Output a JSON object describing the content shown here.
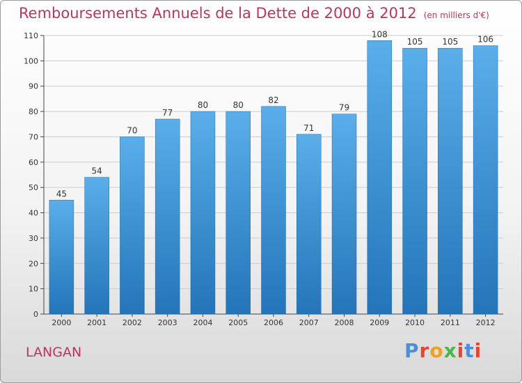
{
  "title": "Remboursements Annuels de la Dette de 2000 à 2012",
  "unit": "(en milliers d'€)",
  "town": "LANGAN",
  "logo": {
    "text": "Proxiti",
    "colors": [
      "#4a8fd8",
      "#e8452c",
      "#f0a020",
      "#49b64a",
      "#e8452c",
      "#4a8fd8",
      "#e8452c"
    ]
  },
  "colors": {
    "bar_top": "#5aaeea",
    "bar_bottom": "#2375b8",
    "title": "#c0335a",
    "grid": "#cccccc"
  },
  "chart_data": {
    "type": "bar",
    "title": "Remboursements Annuels de la Dette de 2000 à 2012",
    "xlabel": "",
    "ylabel": "",
    "categories": [
      "2000",
      "2001",
      "2002",
      "2003",
      "2004",
      "2005",
      "2006",
      "2007",
      "2008",
      "2009",
      "2010",
      "2011",
      "2012"
    ],
    "values": [
      45,
      54,
      70,
      77,
      80,
      80,
      82,
      71,
      79,
      108,
      105,
      105,
      106
    ],
    "ylim": [
      0,
      110
    ],
    "yticks": [
      0,
      10,
      20,
      30,
      40,
      50,
      60,
      70,
      80,
      90,
      100,
      110
    ],
    "grid": true
  }
}
